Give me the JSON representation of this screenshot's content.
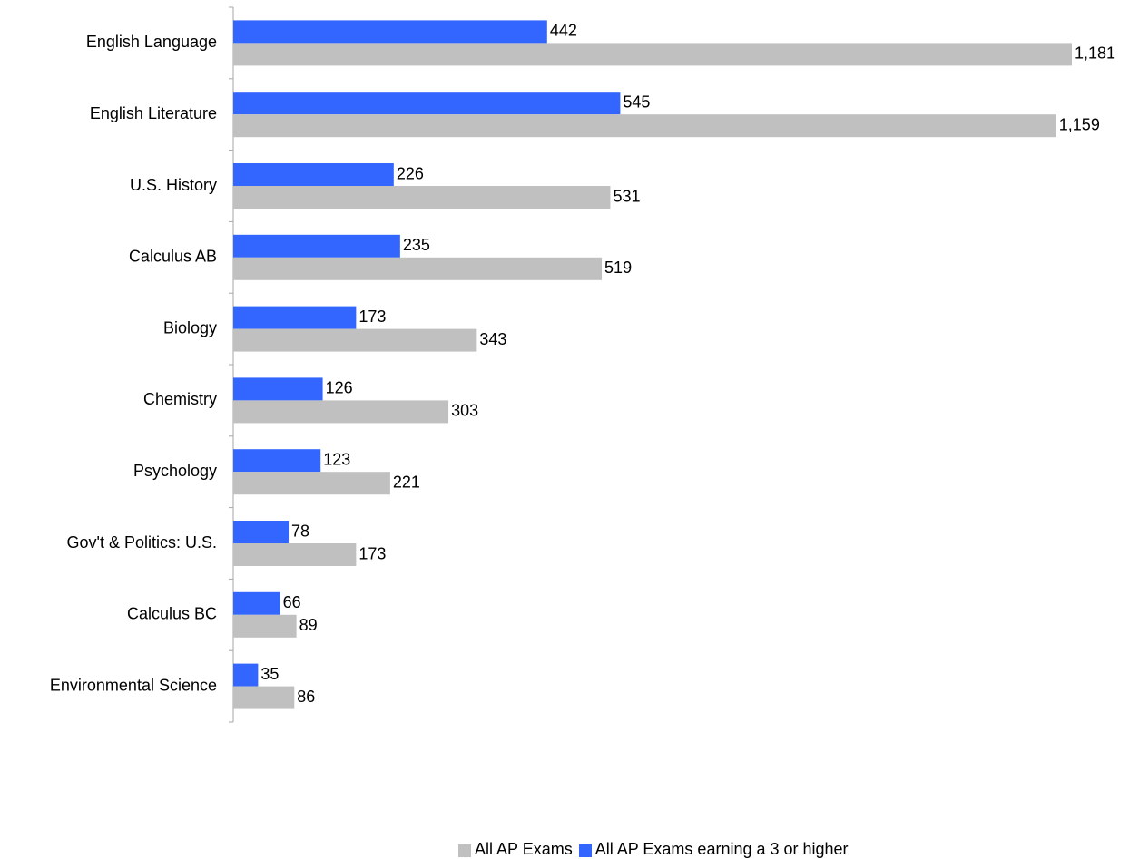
{
  "chart_data": {
    "type": "bar",
    "orientation": "horizontal",
    "title": "",
    "xlabel": "",
    "ylabel": "",
    "categories": [
      "English Language",
      "English Literature",
      "U.S. History",
      "Calculus AB",
      "Biology",
      "Chemistry",
      "Psychology",
      "Gov't & Politics: U.S.",
      "Calculus BC",
      "Environmental Science"
    ],
    "series": [
      {
        "name": "All AP Exams earning a 3 or higher",
        "color": "#3366ff",
        "values": [
          442,
          545,
          226,
          235,
          173,
          126,
          123,
          78,
          66,
          35
        ],
        "labels": [
          "442",
          "545",
          "226",
          "235",
          "173",
          "126",
          "123",
          "78",
          "66",
          "35"
        ]
      },
      {
        "name": "All AP Exams",
        "color": "#c0c0c0",
        "values": [
          1181,
          1159,
          531,
          519,
          343,
          303,
          221,
          173,
          89,
          86
        ],
        "labels": [
          "1,181",
          "1,159",
          "531",
          "519",
          "343",
          "303",
          "221",
          "173",
          "89",
          "86"
        ]
      }
    ],
    "xlim": [
      0,
      1181
    ],
    "grid": false,
    "legend_position": "bottom",
    "legend_order": [
      "All AP Exams",
      "All AP Exams earning a 3 or higher"
    ]
  }
}
